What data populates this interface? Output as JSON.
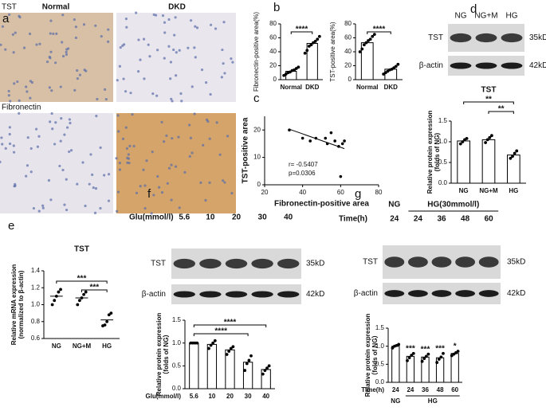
{
  "panels": {
    "labels": [
      "a",
      "b",
      "c",
      "d",
      "e",
      "f",
      "g"
    ]
  },
  "histology": {
    "row_labels": [
      "TST",
      "Fibronectin"
    ],
    "column_labels": [
      "Normal",
      "DKD"
    ]
  },
  "blots": [
    {
      "lanes": [
        "NG",
        "NG+M",
        "HG"
      ],
      "rows": [
        "TST",
        "β-actin"
      ],
      "sizes": [
        "35kD",
        "42kD"
      ]
    },
    {
      "lane_title": "Glu(mmol/l)",
      "lanes": [
        "5.6",
        "10",
        "20",
        "30",
        "40"
      ],
      "rows": [
        "TST",
        "β-actin"
      ],
      "sizes": [
        "35kD",
        "42kD"
      ]
    },
    {
      "group_labels": [
        "NG",
        "HG(30mmol/l)"
      ],
      "lane_title": "Time(h)",
      "lanes": [
        "24",
        "24",
        "36",
        "48",
        "60"
      ],
      "rows": [
        "TST",
        "β-actin"
      ],
      "sizes": [
        "35kD",
        "42kD"
      ]
    }
  ],
  "chart_data": [
    {
      "type": "bar",
      "ylabel": "Fibronectin-positive area(%)",
      "categories": [
        "Normal",
        "DKD"
      ],
      "values": [
        12,
        52
      ],
      "points": [
        [
          6,
          8,
          10,
          11,
          13,
          14,
          16,
          18
        ],
        [
          38,
          42,
          48,
          50,
          53,
          55,
          58,
          62
        ]
      ],
      "ylim": [
        0,
        80
      ],
      "yticks": [
        0,
        20,
        40,
        60,
        80
      ],
      "brackets": [
        {
          "label": "****",
          "span": [
            0,
            1
          ]
        }
      ]
    },
    {
      "type": "bar",
      "ylabel": "TST-positive area(%)",
      "categories": [
        "Normal",
        "DKD"
      ],
      "values": [
        53,
        15
      ],
      "points": [
        [
          40,
          44,
          50,
          53,
          56,
          58,
          62,
          65
        ],
        [
          8,
          10,
          12,
          14,
          15,
          17,
          19,
          22
        ]
      ],
      "ylim": [
        0,
        80
      ],
      "yticks": [
        0,
        20,
        40,
        60,
        80
      ],
      "brackets": [
        {
          "label": "****",
          "span": [
            0,
            1
          ]
        }
      ]
    },
    {
      "type": "scatter",
      "xlabel": "Fibronectin-positive area",
      "ylabel": "TST-positive area",
      "x": [
        33,
        40,
        44,
        47,
        52,
        53,
        55,
        57,
        59,
        60,
        61,
        62
      ],
      "y": [
        20,
        17,
        16,
        17,
        17,
        15,
        19,
        16,
        14,
        3,
        15,
        16
      ],
      "xlim": [
        20,
        80
      ],
      "xticks": [
        20,
        40,
        60,
        80
      ],
      "ylim": [
        0,
        25
      ],
      "yticks": [
        0,
        10,
        20
      ],
      "fit": {
        "x": [
          33,
          62
        ],
        "y": [
          20.3,
          13.2
        ]
      },
      "annotations": [
        "r= -0.5407",
        "p=0.0306"
      ]
    },
    {
      "type": "bar",
      "title": "TST",
      "ylabel": [
        "Relative protein expression",
        "(folds of NG)"
      ],
      "categories": [
        "NG",
        "NG+M",
        "HG"
      ],
      "values": [
        1.02,
        1.05,
        0.68
      ],
      "points": [
        [
          0.95,
          1.0,
          1.05,
          1.08
        ],
        [
          0.98,
          1.05,
          1.1,
          1.15
        ],
        [
          0.6,
          0.65,
          0.72,
          0.78
        ]
      ],
      "ylim": [
        0,
        1.5
      ],
      "yticks": [
        {
          "value": 0,
          "label": "0.0"
        },
        0.5,
        {
          "value": 1,
          "label": "1.0"
        },
        1.5
      ],
      "brackets": [
        {
          "label": "**",
          "span": [
            0,
            2
          ]
        },
        {
          "label": "**",
          "span": [
            1,
            2
          ]
        }
      ]
    },
    {
      "type": "dot",
      "title": "TST",
      "ylabel": [
        "Relative mRNA expression",
        "(normalized to β-actin)"
      ],
      "categories": [
        "NG",
        "NG+M",
        "HG"
      ],
      "values": [
        1.1,
        1.08,
        0.82
      ],
      "points": [
        [
          1.0,
          1.05,
          1.1,
          1.15,
          1.18
        ],
        [
          1.0,
          1.05,
          1.08,
          1.12,
          1.15
        ],
        [
          0.75,
          0.76,
          0.8,
          0.88,
          0.9
        ]
      ],
      "ylim": [
        0.6,
        1.4
      ],
      "yticks": [
        0.6,
        0.8,
        {
          "value": 1,
          "label": "1.0"
        },
        1.2,
        1.4
      ],
      "brackets": [
        {
          "label": "***",
          "span": [
            0,
            2
          ]
        },
        {
          "label": "***",
          "span": [
            1,
            2
          ]
        }
      ]
    },
    {
      "type": "bar",
      "ylabel": [
        "Relative protein expression",
        "（folds of NG）"
      ],
      "x_title": "Glu(mmol/l)",
      "categories": [
        "5.6",
        "10",
        "20",
        "30",
        "40"
      ],
      "values": [
        1.0,
        0.97,
        0.85,
        0.58,
        0.42
      ],
      "points": [
        [
          1.0,
          1.0,
          1.0,
          1.0
        ],
        [
          0.88,
          0.95,
          1.0,
          1.05
        ],
        [
          0.75,
          0.82,
          0.88,
          0.92
        ],
        [
          0.4,
          0.55,
          0.62,
          0.72
        ],
        [
          0.32,
          0.4,
          0.45,
          0.5
        ]
      ],
      "ylim": [
        0,
        1.5
      ],
      "yticks": [
        {
          "value": 0,
          "label": "0.0"
        },
        0.5,
        {
          "value": 1,
          "label": "1.0"
        },
        1.5
      ],
      "brackets": [
        {
          "label": "****",
          "span": [
            0,
            4
          ]
        },
        {
          "label": "****",
          "span": [
            0,
            3
          ]
        }
      ]
    },
    {
      "type": "bar",
      "ylabel": [
        "Relative protein expression",
        "（folds of NG）"
      ],
      "x_title": "Time(h)",
      "categories": [
        "24",
        "24",
        "36",
        "48",
        "60"
      ],
      "groups": [
        {
          "label": "NG",
          "span": [
            0,
            0
          ]
        },
        {
          "label": "HG",
          "span": [
            1,
            4
          ]
        }
      ],
      "values": [
        1.0,
        0.72,
        0.7,
        0.68,
        0.8
      ],
      "points": [
        [
          0.95,
          1.0,
          1.02,
          1.05
        ],
        [
          0.6,
          0.68,
          0.75,
          0.8
        ],
        [
          0.58,
          0.66,
          0.72,
          0.78
        ],
        [
          0.55,
          0.64,
          0.7,
          0.8
        ],
        [
          0.74,
          0.78,
          0.82,
          0.86
        ]
      ],
      "significance": [
        null,
        "***",
        "***",
        "***",
        "*"
      ],
      "ylim": [
        0,
        1.5
      ],
      "yticks": [
        {
          "value": 0,
          "label": "0.0"
        },
        0.5,
        {
          "value": 1,
          "label": "1.0"
        },
        1.5
      ]
    }
  ]
}
